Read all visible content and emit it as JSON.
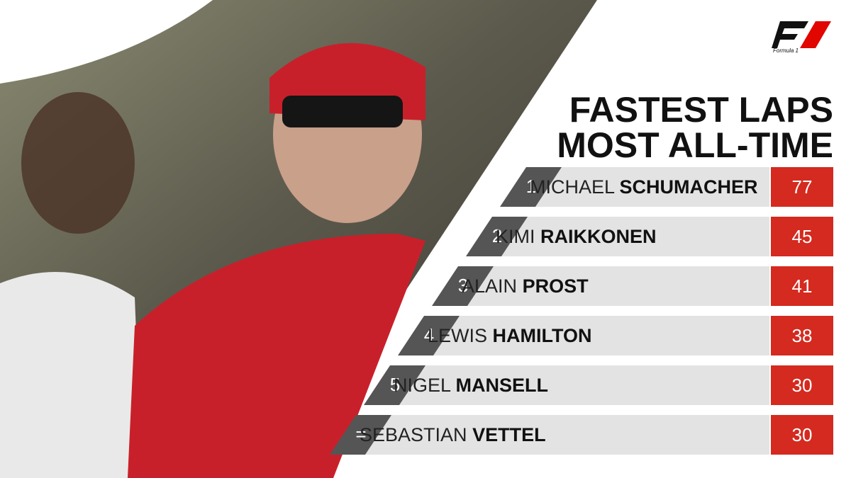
{
  "logo": {
    "text": "Formula 1"
  },
  "title": {
    "line1": "FASTEST LAPS",
    "line2": "MOST ALL-TIME"
  },
  "table": {
    "rows": [
      {
        "rank": "1",
        "first_name": "MICHAEL",
        "last_name": "SCHUMACHER",
        "value": 77
      },
      {
        "rank": "2",
        "first_name": "KIMI",
        "last_name": "RAIKKONEN",
        "value": 45
      },
      {
        "rank": "3",
        "first_name": "ALAIN",
        "last_name": "PROST",
        "value": 41
      },
      {
        "rank": "4",
        "first_name": "LEWIS",
        "last_name": "HAMILTON",
        "value": 38
      },
      {
        "rank": "5",
        "first_name": "NIGEL",
        "last_name": "MANSELL",
        "value": 30
      },
      {
        "rank": "=",
        "first_name": "SEBASTIAN",
        "last_name": "VETTEL",
        "value": 30
      }
    ]
  }
}
